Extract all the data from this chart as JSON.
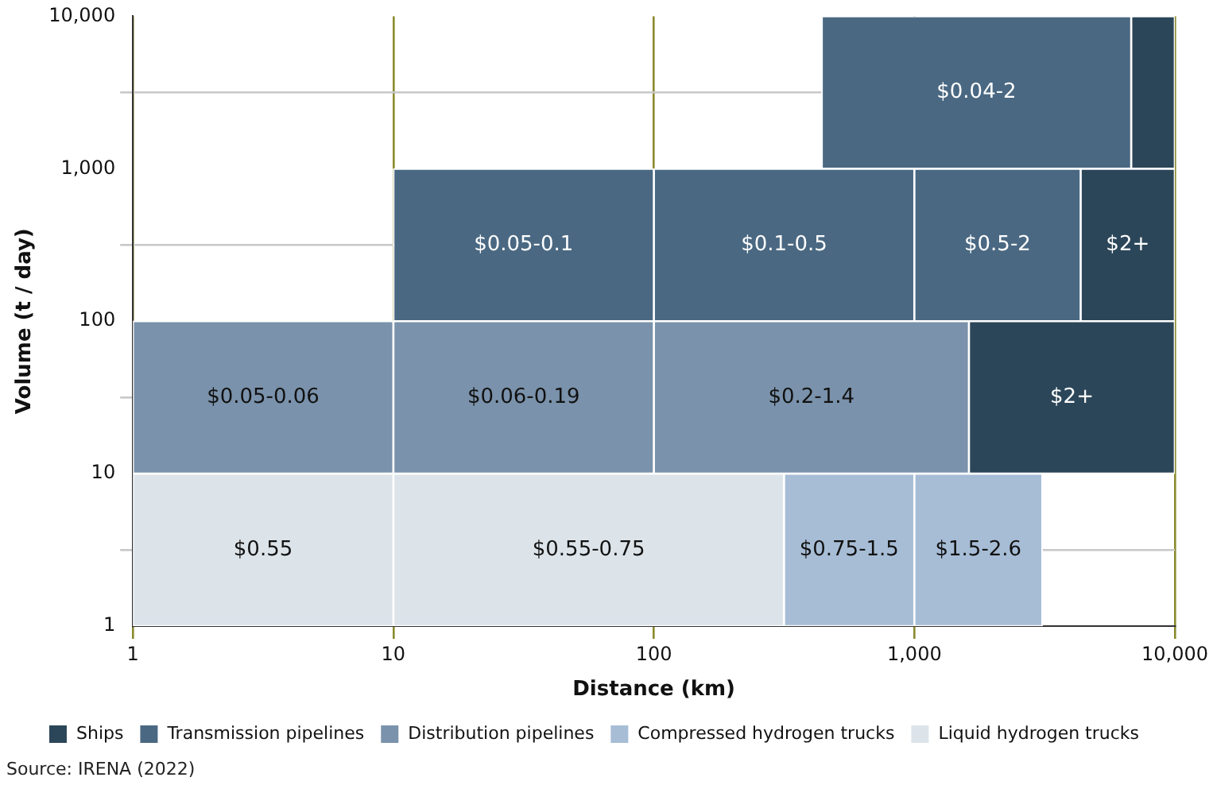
{
  "chart_data": {
    "type": "bar",
    "orientation": "horizontal",
    "log": "xy",
    "xlabel": "Distance (km)",
    "ylabel": "Volume (t / day)",
    "xlim": [
      1,
      10000
    ],
    "xticks": [
      1,
      10,
      100,
      {
        "value": 1000,
        "label": "1,000"
      },
      {
        "value": 10000,
        "label": "10,000"
      }
    ],
    "ylim": [
      1,
      10000
    ],
    "yticks": [
      1,
      10,
      100,
      {
        "value": 1000,
        "label": "1,000"
      },
      {
        "value": 10000,
        "label": "10,000"
      }
    ],
    "grid": true,
    "legend": "bottom",
    "annotations": [
      "Source: IRENA (2022)",
      "$0.55-0.75",
      "$1.5-2.6",
      "$0.2-1.4",
      "$0.06-0.19",
      "$0.5-2",
      "$0.1-0.5",
      "$0.55",
      "$0.75-1.5",
      "$0.05-0.06",
      "$0.05-0.1",
      "$0.04-2",
      "$2+",
      "$2+"
    ],
    "series": [
      {
        "name": "Ships",
        "color": "#2c4659",
        "x": [
          31.6,
          316,
          3160
        ],
        "base": [
          1620,
          4350,
          6800
        ],
        "values": [
          8380,
          5650,
          3200
        ]
      },
      {
        "name": "Transmission pipelines",
        "color": "#4a6882",
        "x": [
          316,
          3160
        ],
        "base": [
          10,
          441
        ],
        "values": [
          90,
          6359
        ]
      },
      {
        "name": "Distribution pipelines",
        "color": "#7a92ab",
        "x": [
          31.6
        ],
        "base": [
          1
        ],
        "values": [
          9
        ]
      },
      {
        "name": "Compressed hydrogen trucks",
        "color": "#a7bdd6",
        "x": [
          3.16
        ],
        "base": [
          316
        ],
        "values": [
          684
        ]
      },
      {
        "name": "Liquid hydrogen trucks",
        "color": "#dce4ea",
        "x": [
          3.16
        ],
        "base": [
          1
        ],
        "values": [
          9
        ]
      },
      {
        "color": "#4a6882",
        "x": [
          316
        ],
        "base": [
          100
        ],
        "values": [
          900
        ]
      },
      {
        "color": "#4a6882",
        "x": [
          316
        ],
        "base": [
          1000
        ],
        "values": [
          3350
        ]
      },
      {
        "color": "#7a92ab",
        "x": [
          31.6
        ],
        "base": [
          10
        ],
        "values": [
          90
        ]
      },
      {
        "color": "#7a92ab",
        "x": [
          31.6
        ],
        "base": [
          100
        ],
        "values": [
          1520
        ]
      },
      {
        "color": "#a7bdd6",
        "x": [
          3.16
        ],
        "base": [
          1000
        ],
        "values": [
          2100
        ]
      },
      {
        "color": "#dce4ea",
        "x": [
          3.16
        ],
        "base": [
          10
        ],
        "values": [
          306
        ]
      }
    ]
  }
}
